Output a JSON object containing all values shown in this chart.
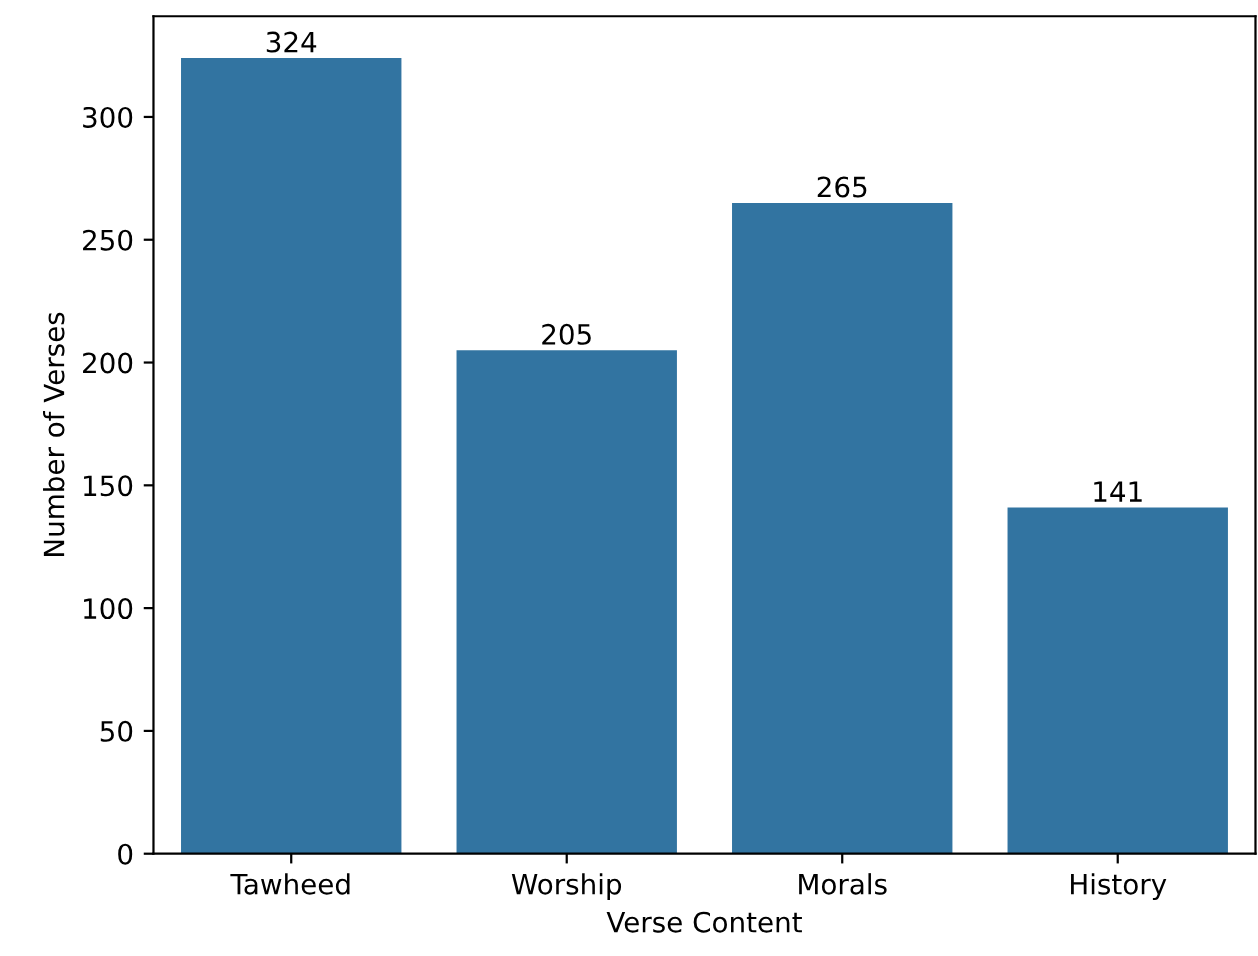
{
  "chart_data": {
    "type": "bar",
    "xlabel": "Verse Content",
    "ylabel": "Number of Verses",
    "categories": [
      "Tawheed",
      "Worship",
      "Morals",
      "History"
    ],
    "values": [
      324,
      205,
      265,
      141
    ],
    "color": "#3274a1",
    "ylim": [
      0,
      341
    ],
    "yticks": [
      0,
      50,
      100,
      150,
      200,
      250,
      300
    ],
    "data_labels": true,
    "grid": false
  }
}
